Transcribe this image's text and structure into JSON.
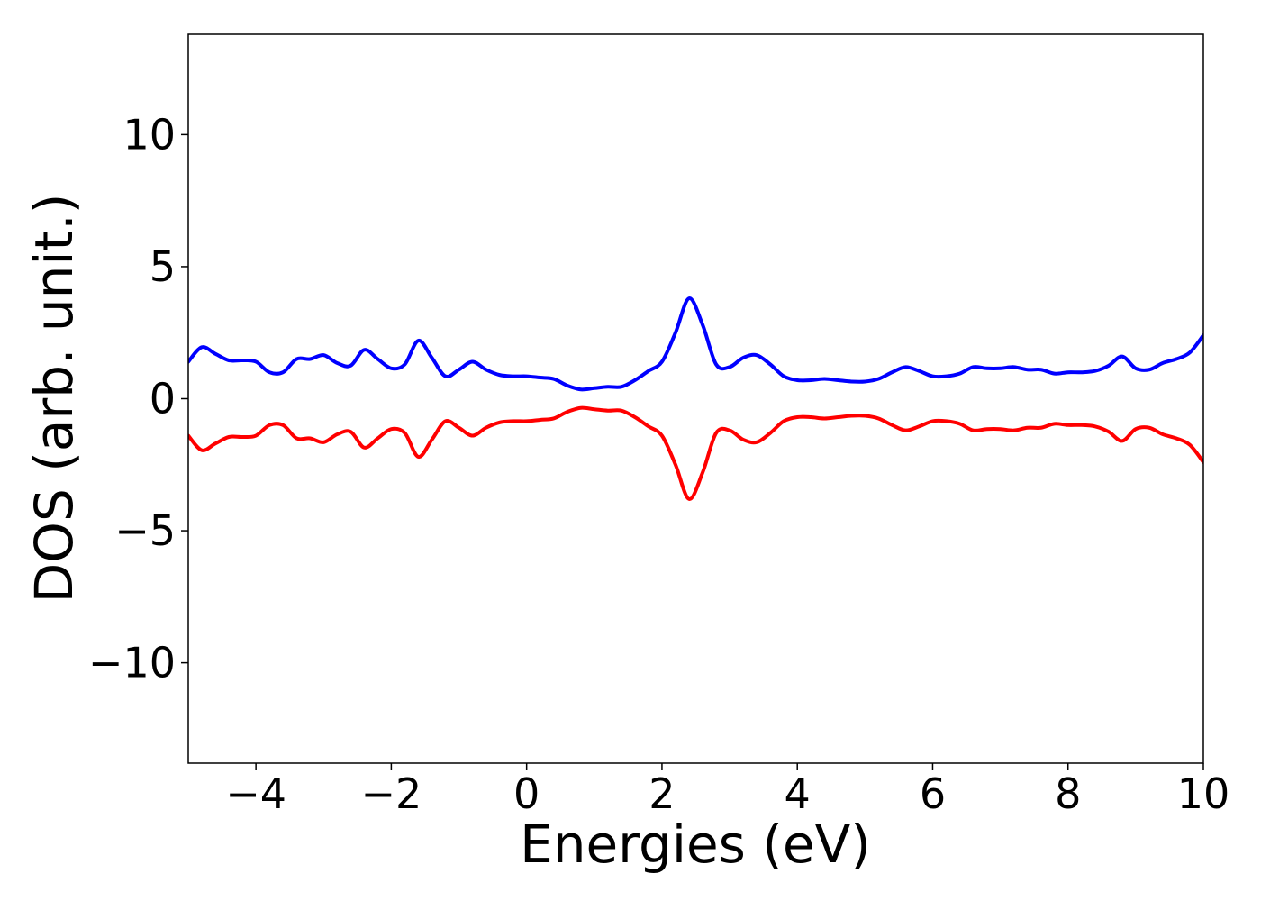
{
  "chart_data": {
    "type": "line",
    "title": "",
    "xlabel": "Energies (eV)",
    "ylabel": "DOS (arb. unit.)",
    "xlim": [
      -5,
      10
    ],
    "ylim": [
      -13.8,
      13.8
    ],
    "xticks": [
      -4,
      -2,
      0,
      2,
      4,
      6,
      8,
      10
    ],
    "yticks": [
      -10,
      -5,
      0,
      5,
      10
    ],
    "xtick_labels": [
      "−4",
      "−2",
      "0",
      "2",
      "4",
      "6",
      "8",
      "10"
    ],
    "ytick_labels": [
      "−10",
      "−5",
      "0",
      "5",
      "10"
    ],
    "grid": false,
    "legend": false,
    "series": [
      {
        "color": "#0000ff",
        "x": [
          -5.0,
          -4.8,
          -4.6,
          -4.4,
          -4.2,
          -4.0,
          -3.8,
          -3.6,
          -3.4,
          -3.2,
          -3.0,
          -2.8,
          -2.6,
          -2.4,
          -2.2,
          -2.0,
          -1.8,
          -1.6,
          -1.4,
          -1.2,
          -1.0,
          -0.8,
          -0.6,
          -0.4,
          -0.2,
          0.0,
          0.2,
          0.4,
          0.6,
          0.8,
          1.0,
          1.2,
          1.4,
          1.6,
          1.8,
          2.0,
          2.2,
          2.4,
          2.6,
          2.8,
          3.0,
          3.2,
          3.4,
          3.6,
          3.8,
          4.0,
          4.2,
          4.4,
          4.6,
          4.8,
          5.0,
          5.2,
          5.4,
          5.6,
          5.8,
          6.0,
          6.2,
          6.4,
          6.6,
          6.8,
          7.0,
          7.2,
          7.4,
          7.6,
          7.8,
          8.0,
          8.2,
          8.4,
          8.6,
          8.8,
          9.0,
          9.2,
          9.4,
          9.6,
          9.8,
          10.0
        ],
        "y": [
          1.4,
          1.95,
          1.7,
          1.45,
          1.45,
          1.4,
          1.0,
          1.0,
          1.5,
          1.5,
          1.65,
          1.35,
          1.25,
          1.85,
          1.5,
          1.15,
          1.3,
          2.2,
          1.55,
          0.85,
          1.1,
          1.4,
          1.1,
          0.9,
          0.85,
          0.85,
          0.8,
          0.75,
          0.5,
          0.35,
          0.4,
          0.45,
          0.45,
          0.7,
          1.05,
          1.4,
          2.5,
          3.8,
          2.8,
          1.3,
          1.2,
          1.55,
          1.65,
          1.3,
          0.85,
          0.7,
          0.7,
          0.75,
          0.7,
          0.65,
          0.65,
          0.75,
          1.0,
          1.2,
          1.05,
          0.85,
          0.85,
          0.95,
          1.2,
          1.15,
          1.15,
          1.2,
          1.1,
          1.1,
          0.95,
          1.0,
          1.0,
          1.05,
          1.25,
          1.6,
          1.15,
          1.1,
          1.35,
          1.5,
          1.75,
          2.4
        ]
      },
      {
        "color": "#ff0000",
        "x": [
          -5.0,
          -4.8,
          -4.6,
          -4.4,
          -4.2,
          -4.0,
          -3.8,
          -3.6,
          -3.4,
          -3.2,
          -3.0,
          -2.8,
          -2.6,
          -2.4,
          -2.2,
          -2.0,
          -1.8,
          -1.6,
          -1.4,
          -1.2,
          -1.0,
          -0.8,
          -0.6,
          -0.4,
          -0.2,
          0.0,
          0.2,
          0.4,
          0.6,
          0.8,
          1.0,
          1.2,
          1.4,
          1.6,
          1.8,
          2.0,
          2.2,
          2.4,
          2.6,
          2.8,
          3.0,
          3.2,
          3.4,
          3.6,
          3.8,
          4.0,
          4.2,
          4.4,
          4.6,
          4.8,
          5.0,
          5.2,
          5.4,
          5.6,
          5.8,
          6.0,
          6.2,
          6.4,
          6.6,
          6.8,
          7.0,
          7.2,
          7.4,
          7.6,
          7.8,
          8.0,
          8.2,
          8.4,
          8.6,
          8.8,
          9.0,
          9.2,
          9.4,
          9.6,
          9.8,
          10.0
        ],
        "y": [
          -1.4,
          -1.95,
          -1.7,
          -1.45,
          -1.45,
          -1.4,
          -1.0,
          -1.0,
          -1.5,
          -1.5,
          -1.65,
          -1.35,
          -1.25,
          -1.85,
          -1.5,
          -1.15,
          -1.3,
          -2.2,
          -1.55,
          -0.85,
          -1.1,
          -1.4,
          -1.1,
          -0.9,
          -0.85,
          -0.85,
          -0.8,
          -0.75,
          -0.5,
          -0.35,
          -0.4,
          -0.45,
          -0.45,
          -0.7,
          -1.05,
          -1.4,
          -2.5,
          -3.8,
          -2.8,
          -1.3,
          -1.2,
          -1.55,
          -1.65,
          -1.3,
          -0.85,
          -0.7,
          -0.7,
          -0.75,
          -0.7,
          -0.65,
          -0.65,
          -0.75,
          -1.0,
          -1.2,
          -1.05,
          -0.85,
          -0.85,
          -0.95,
          -1.2,
          -1.15,
          -1.15,
          -1.2,
          -1.1,
          -1.1,
          -0.95,
          -1.0,
          -1.0,
          -1.05,
          -1.25,
          -1.6,
          -1.15,
          -1.1,
          -1.35,
          -1.5,
          -1.75,
          -2.4
        ]
      }
    ]
  }
}
